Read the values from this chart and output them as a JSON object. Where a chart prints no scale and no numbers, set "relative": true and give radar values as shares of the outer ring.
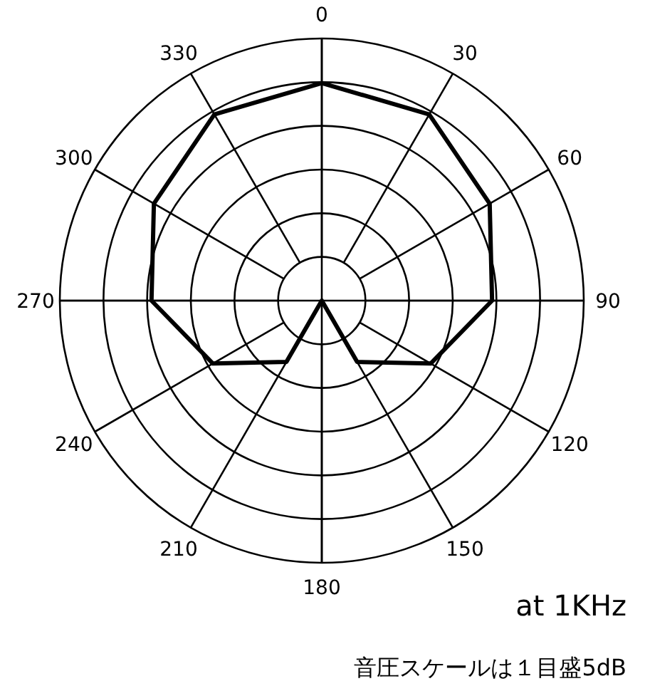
{
  "chart_data": {
    "type": "radar",
    "relative": true,
    "grid": true,
    "marker": "none",
    "line_style": "solid",
    "categories": [
      "0",
      "30",
      "60",
      "90",
      "120",
      "150",
      "180",
      "210",
      "240",
      "270",
      "300",
      "330"
    ],
    "series": [
      {
        "color": "#000000",
        "values": [
          0.83,
          0.82,
          0.74,
          0.65,
          0.48,
          0.27,
          0,
          0.27,
          0.48,
          0.65,
          0.74,
          0.82
        ]
      }
    ],
    "annotations": [
      "at 1KHz",
      "音圧スケールは１目盛5dB"
    ]
  }
}
